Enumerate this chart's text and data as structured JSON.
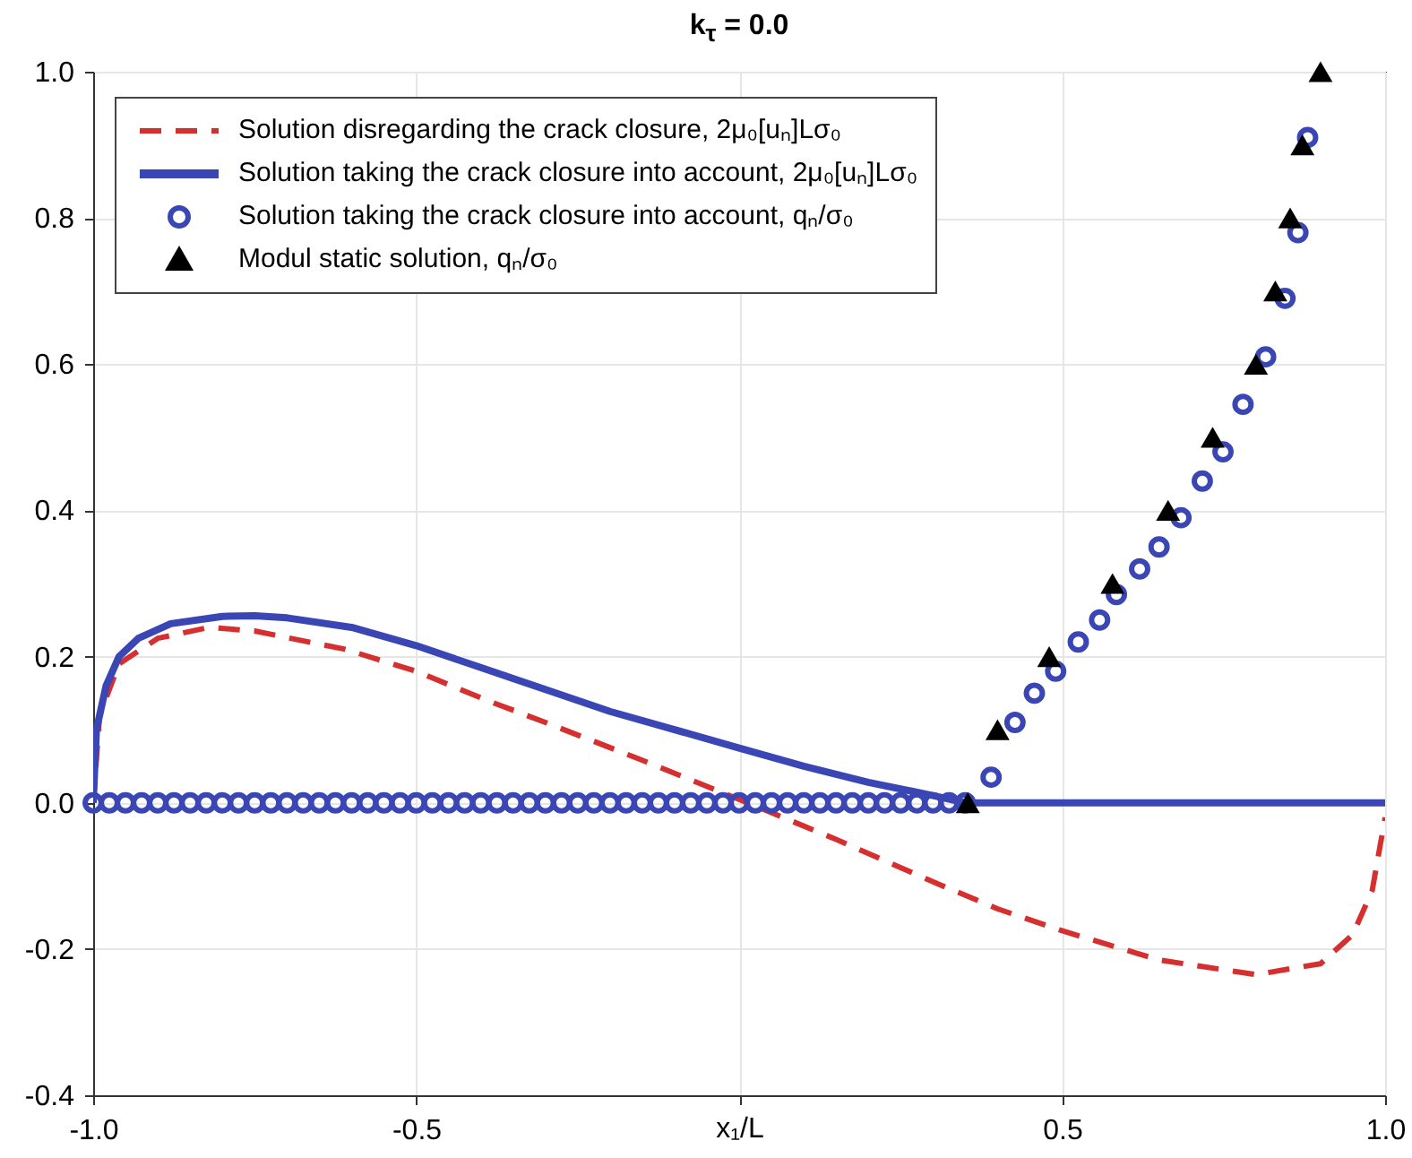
{
  "chart_data": {
    "type": "line",
    "title": "k$_{τ}$ = 0.0",
    "xlabel": "x₁/L",
    "xlim": [
      -1,
      1
    ],
    "ylim": [
      -0.4,
      1.0
    ],
    "xticks": [
      {
        "value": -1,
        "label": "-1.0"
      },
      {
        "value": -0.5,
        "label": "-0.5"
      },
      {
        "value": 0,
        "label": null
      },
      {
        "value": 0.5,
        "label": "0.5"
      },
      {
        "value": 1,
        "label": "1.0"
      }
    ],
    "yticks": [
      {
        "value": -0.4,
        "label": "-0.4"
      },
      {
        "value": -0.2,
        "label": "-0.2"
      },
      {
        "value": 0,
        "label": "0.0"
      },
      {
        "value": 0.2,
        "label": "0.2"
      },
      {
        "value": 0.4,
        "label": "0.4"
      },
      {
        "value": 0.6,
        "label": "0.6"
      },
      {
        "value": 0.8,
        "label": "0.8"
      },
      {
        "value": 1,
        "label": "1.0"
      }
    ],
    "grid": true,
    "legend": "top left",
    "series": [
      {
        "name": "Solution disregarding the crack closure, 2μ₀[uₙ]Lσ₀",
        "line_style": "dashed",
        "color": "#d62f2f",
        "x": [
          -1,
          -0.99,
          -0.96,
          -0.9,
          -0.82,
          -0.75,
          -0.61,
          -0.5,
          -0.39,
          -0.3,
          -0.155,
          0.013,
          0.15,
          0.3,
          0.4,
          0.5,
          0.65,
          0.8,
          0.9,
          0.95,
          0.98,
          1.0
        ],
        "values": [
          0,
          0.12,
          0.19,
          0.225,
          0.24,
          0.235,
          0.21,
          0.18,
          0.14,
          0.11,
          0.06,
          0,
          -0.05,
          -0.108,
          -0.145,
          -0.175,
          -0.215,
          -0.235,
          -0.22,
          -0.18,
          -0.12,
          -0.02
        ]
      },
      {
        "name": "Solution taking the crack closure into account, 2μ₀[uₙ]Lσ₀",
        "line_style": "solid",
        "color": "#3a46b4",
        "x": [
          -1,
          -0.995,
          -0.98,
          -0.96,
          -0.93,
          -0.88,
          -0.8,
          -0.75,
          -0.7,
          -0.6,
          -0.5,
          -0.4,
          -0.3,
          -0.2,
          -0.1,
          0,
          0.1,
          0.2,
          0.3,
          0.35,
          1
        ],
        "values": [
          0,
          0.1,
          0.16,
          0.2,
          0.225,
          0.245,
          0.255,
          0.256,
          0.253,
          0.24,
          0.215,
          0.185,
          0.155,
          0.125,
          0.1,
          0.075,
          0.05,
          0.028,
          0.01,
          0,
          0
        ]
      },
      {
        "name": "Solution taking the crack closure into account, qₙ/σ₀",
        "type": "scatter",
        "marker": "circle",
        "color": "#3a46b4",
        "x": [
          -1,
          -0.975,
          -0.95,
          -0.925,
          -0.9,
          -0.875,
          -0.85,
          -0.825,
          -0.8,
          -0.775,
          -0.75,
          -0.725,
          -0.7,
          -0.675,
          -0.65,
          -0.625,
          -0.6,
          -0.575,
          -0.55,
          -0.525,
          -0.5,
          -0.475,
          -0.45,
          -0.425,
          -0.4,
          -0.375,
          -0.35,
          -0.325,
          -0.3,
          -0.275,
          -0.25,
          -0.225,
          -0.2,
          -0.175,
          -0.15,
          -0.125,
          -0.1,
          -0.075,
          -0.05,
          -0.025,
          0,
          0.025,
          0.05,
          0.075,
          0.1,
          0.125,
          0.15,
          0.175,
          0.2,
          0.225,
          0.25,
          0.275,
          0.3,
          0.325,
          0.35,
          0.39,
          0.427,
          0.457,
          0.49,
          0.525,
          0.558,
          0.584,
          0.62,
          0.65,
          0.684,
          0.717,
          0.749,
          0.78,
          0.815,
          0.845,
          0.865,
          0.88
        ],
        "values": [
          0,
          0,
          0,
          0,
          0,
          0,
          0,
          0,
          0,
          0,
          0,
          0,
          0,
          0,
          0,
          0,
          0,
          0,
          0,
          0,
          0,
          0,
          0,
          0,
          0,
          0,
          0,
          0,
          0,
          0,
          0,
          0,
          0,
          0,
          0,
          0,
          0,
          0,
          0,
          0,
          0,
          0,
          0,
          0,
          0,
          0,
          0,
          0,
          0,
          0,
          0,
          0,
          0,
          0,
          0,
          0.035,
          0.11,
          0.15,
          0.18,
          0.22,
          0.25,
          0.285,
          0.32,
          0.35,
          0.39,
          0.44,
          0.48,
          0.545,
          0.61,
          0.69,
          0.78,
          0.91
        ]
      },
      {
        "name": "Modul static solution, qₙ/σ₀",
        "type": "scatter",
        "marker": "triangle",
        "color": "#000000",
        "x": [
          0.354,
          0.4,
          0.48,
          0.578,
          0.664,
          0.733,
          0.8,
          0.83,
          0.853,
          0.872,
          0.9
        ],
        "values": [
          0,
          0.1,
          0.2,
          0.3,
          0.4,
          0.5,
          0.6,
          0.7,
          0.8,
          0.9,
          1.0
        ]
      }
    ]
  }
}
